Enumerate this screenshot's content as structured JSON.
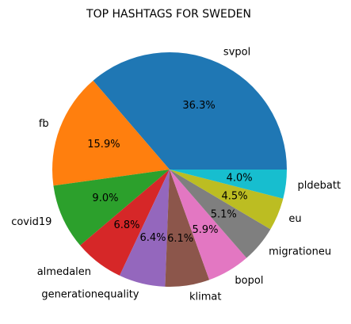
{
  "chart_data": {
    "type": "pie",
    "title": "TOP HASHTAGS FOR SWEDEN",
    "start_angle_deg": 0,
    "direction": "counterclockwise",
    "slices": [
      {
        "label": "svpol",
        "value": 36.3,
        "pct_label": "36.3%",
        "color": "#1f77b4"
      },
      {
        "label": "fb",
        "value": 15.9,
        "pct_label": "15.9%",
        "color": "#ff7f0e"
      },
      {
        "label": "covid19",
        "value": 9.0,
        "pct_label": "9.0%",
        "color": "#2ca02c"
      },
      {
        "label": "almedalen",
        "value": 6.8,
        "pct_label": "6.8%",
        "color": "#d62728"
      },
      {
        "label": "generationequality",
        "value": 6.4,
        "pct_label": "6.4%",
        "color": "#9467bd"
      },
      {
        "label": "klimat",
        "value": 6.1,
        "pct_label": "6.1%",
        "color": "#8c564b"
      },
      {
        "label": "bopol",
        "value": 5.9,
        "pct_label": "5.9%",
        "color": "#e377c2"
      },
      {
        "label": "migrationeu",
        "value": 5.1,
        "pct_label": "5.1%",
        "color": "#7f7f7f"
      },
      {
        "label": "eu",
        "value": 4.5,
        "pct_label": "4.5%",
        "color": "#bcbd22"
      },
      {
        "label": "pldebatt",
        "value": 4.0,
        "pct_label": "4.0%",
        "color": "#17becf"
      }
    ]
  }
}
